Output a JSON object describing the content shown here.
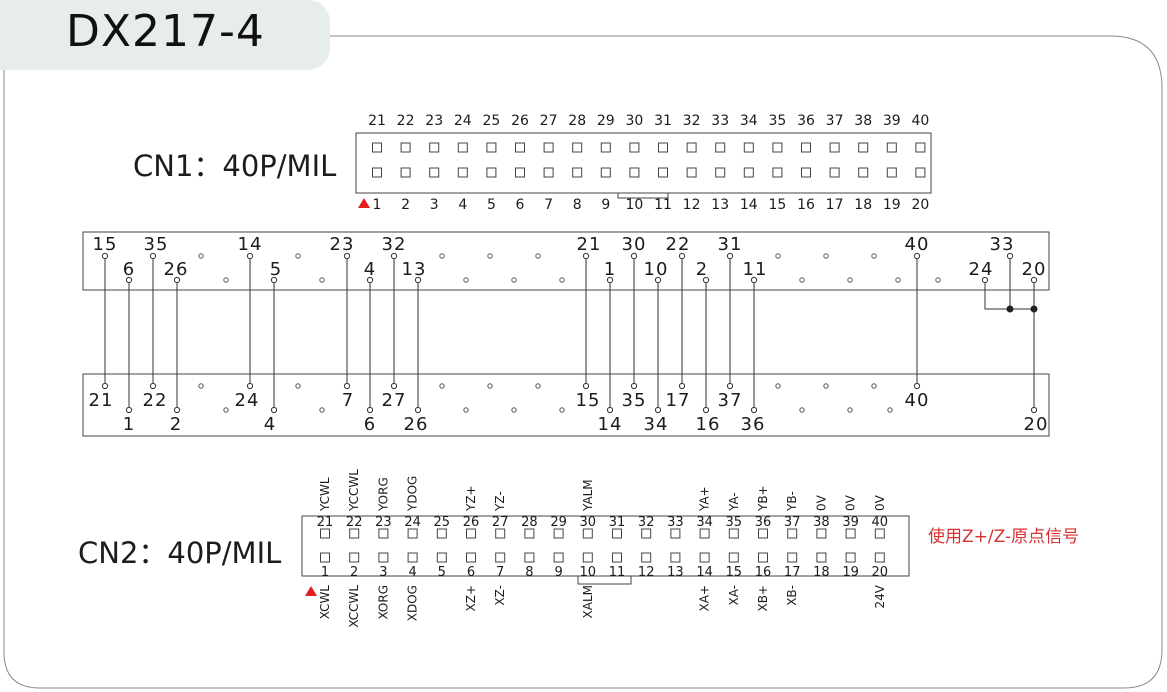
{
  "title": "DX217-4",
  "cn1": {
    "label": "CN1：40P/MIL",
    "top_numbers": [
      "21",
      "22",
      "23",
      "24",
      "25",
      "26",
      "27",
      "28",
      "29",
      "30",
      "31",
      "32",
      "33",
      "34",
      "35",
      "36",
      "37",
      "38",
      "39",
      "40"
    ],
    "bottom_numbers": [
      "1",
      "2",
      "3",
      "4",
      "5",
      "6",
      "7",
      "8",
      "9",
      "10",
      "11",
      "12",
      "13",
      "14",
      "15",
      "16",
      "17",
      "18",
      "19",
      "20"
    ]
  },
  "wiring": {
    "upper_top_labels": [
      "15",
      "35",
      "14",
      "23",
      "32",
      "21",
      "30",
      "22",
      "31",
      "40",
      "33"
    ],
    "upper_bottom_labels": [
      "6",
      "26",
      "5",
      "4",
      "13",
      "1",
      "10",
      "2",
      "11",
      "24",
      "20"
    ],
    "lower_top_labels": [
      "21",
      "22",
      "24",
      "7",
      "27",
      "15",
      "35",
      "17",
      "37",
      "40"
    ],
    "lower_bottom_labels": [
      "1",
      "2",
      "4",
      "6",
      "26",
      "14",
      "34",
      "16",
      "36",
      "20"
    ]
  },
  "cn2": {
    "label": "CN2：40P/MIL",
    "top_numbers": [
      "21",
      "22",
      "23",
      "24",
      "25",
      "26",
      "27",
      "28",
      "29",
      "30",
      "31",
      "32",
      "33",
      "34",
      "35",
      "36",
      "37",
      "38",
      "39",
      "40"
    ],
    "bottom_numbers": [
      "1",
      "2",
      "3",
      "4",
      "5",
      "6",
      "7",
      "8",
      "9",
      "10",
      "11",
      "12",
      "13",
      "14",
      "15",
      "16",
      "17",
      "18",
      "19",
      "20"
    ],
    "top_signals": [
      "YCWL",
      "YCCWL",
      "YORG",
      "YDOG",
      "",
      "YZ+",
      "YZ-",
      "",
      "",
      "YALM",
      "",
      "",
      "",
      "YA+",
      "YA-",
      "YB+",
      "YB-",
      "0V",
      "0V",
      "0V"
    ],
    "bottom_signals": [
      "XCWL",
      "XCCWL",
      "XORG",
      "XDOG",
      "",
      "XZ+",
      "XZ-",
      "",
      "",
      "XALM",
      "",
      "",
      "",
      "XA+",
      "XA-",
      "XB+",
      "XB-",
      "",
      "",
      "24V"
    ],
    "note": "使用Z+/Z-原点信号"
  },
  "colors": {
    "marker": "#e02020",
    "note": "#d83030",
    "line": "#333333",
    "tab": "#e7ecec"
  }
}
